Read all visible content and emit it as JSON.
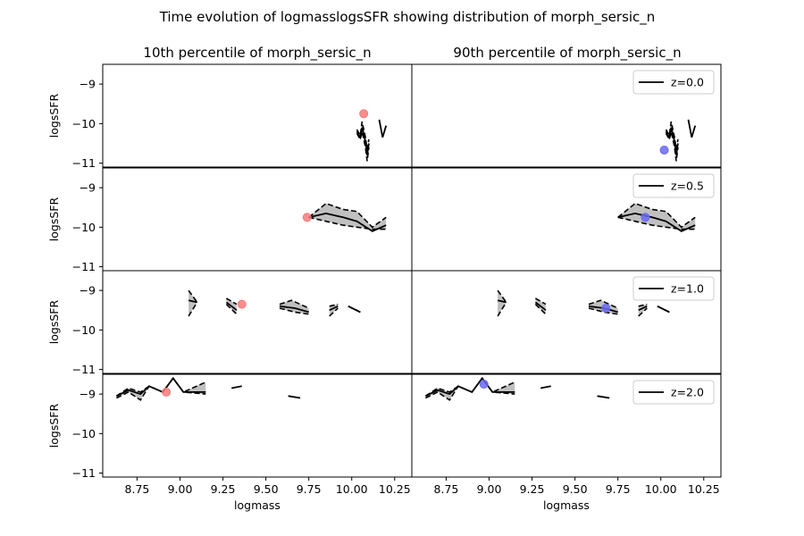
{
  "figure": {
    "suptitle": "Time evolution of logmasslogsSFR showing distribution of morph_sersic_n",
    "col_titles": [
      "10th percentile of morph_sersic_n",
      "90th percentile of morph_sersic_n"
    ],
    "xlabel": "logmass",
    "ylabel": "logsSFR",
    "legend_labels": [
      "z=0.0",
      "z=0.5",
      "z=1.0",
      "z=2.0"
    ]
  },
  "chart_data": {
    "type": "line",
    "layout": "4 rows x 2 columns, shared axes",
    "xlim": [
      8.55,
      10.35
    ],
    "ylim": [
      -11.1,
      -8.5
    ],
    "xticks": [
      8.75,
      9.0,
      9.25,
      9.5,
      9.75,
      10.0,
      10.25
    ],
    "xtick_labels": [
      "8.75",
      "9.00",
      "9.25",
      "9.50",
      "9.75",
      "10.00",
      "10.25"
    ],
    "yticks": [
      -9,
      -10,
      -11
    ],
    "ytick_labels": [
      "−9",
      "−10",
      "−11"
    ],
    "legend_position": "upper right",
    "colors": {
      "median": "#000000",
      "band": "#c0c0c0",
      "left_marker": "#f87a7a",
      "right_marker": "#6a6af2"
    },
    "panels": [
      {
        "row": 0,
        "col": 0,
        "z": "0.0",
        "median": [
          [
            10.03,
            -10.2
          ],
          [
            10.05,
            -10.35
          ],
          [
            10.06,
            -10.1
          ],
          [
            10.08,
            -10.45
          ],
          [
            10.09,
            -10.8
          ],
          [
            10.1,
            -10.5
          ]
        ],
        "upper": [
          [
            10.03,
            -10.15
          ],
          [
            10.05,
            -10.3
          ],
          [
            10.06,
            -9.95
          ],
          [
            10.08,
            -10.35
          ],
          [
            10.09,
            -10.65
          ],
          [
            10.1,
            -10.4
          ]
        ],
        "lower": [
          [
            10.03,
            -10.25
          ],
          [
            10.05,
            -10.4
          ],
          [
            10.06,
            -10.2
          ],
          [
            10.08,
            -10.6
          ],
          [
            10.09,
            -10.95
          ],
          [
            10.1,
            -10.6
          ]
        ],
        "extra_segments": [
          [
            [
              10.16,
              -9.9
            ],
            [
              10.18,
              -10.35
            ],
            [
              10.2,
              -10.05
            ]
          ]
        ],
        "marker": [
          10.07,
          -9.75
        ]
      },
      {
        "row": 0,
        "col": 1,
        "z": "0.0",
        "median": [
          [
            10.03,
            -10.2
          ],
          [
            10.05,
            -10.35
          ],
          [
            10.06,
            -10.1
          ],
          [
            10.08,
            -10.45
          ],
          [
            10.09,
            -10.8
          ],
          [
            10.1,
            -10.5
          ]
        ],
        "upper": [
          [
            10.03,
            -10.15
          ],
          [
            10.05,
            -10.3
          ],
          [
            10.06,
            -9.95
          ],
          [
            10.08,
            -10.35
          ],
          [
            10.09,
            -10.65
          ],
          [
            10.1,
            -10.4
          ]
        ],
        "lower": [
          [
            10.03,
            -10.25
          ],
          [
            10.05,
            -10.4
          ],
          [
            10.06,
            -10.2
          ],
          [
            10.08,
            -10.6
          ],
          [
            10.09,
            -10.95
          ],
          [
            10.1,
            -10.6
          ]
        ],
        "extra_segments": [
          [
            [
              10.16,
              -9.9
            ],
            [
              10.18,
              -10.35
            ],
            [
              10.2,
              -10.05
            ]
          ]
        ],
        "marker": [
          10.02,
          -10.67
        ]
      },
      {
        "row": 1,
        "col": 0,
        "z": "0.5",
        "median": [
          [
            9.75,
            -9.75
          ],
          [
            9.85,
            -9.65
          ],
          [
            9.95,
            -9.75
          ],
          [
            10.03,
            -9.85
          ],
          [
            10.12,
            -10.1
          ],
          [
            10.2,
            -9.95
          ]
        ],
        "upper": [
          [
            9.75,
            -9.75
          ],
          [
            9.85,
            -9.4
          ],
          [
            9.95,
            -9.55
          ],
          [
            10.03,
            -9.6
          ],
          [
            10.12,
            -10.0
          ],
          [
            10.2,
            -9.75
          ]
        ],
        "lower": [
          [
            9.75,
            -9.75
          ],
          [
            9.85,
            -9.85
          ],
          [
            9.95,
            -9.95
          ],
          [
            10.03,
            -10.0
          ],
          [
            10.12,
            -10.05
          ],
          [
            10.2,
            -10.05
          ]
        ],
        "extra_segments": [],
        "marker": [
          9.74,
          -9.75
        ]
      },
      {
        "row": 1,
        "col": 1,
        "z": "0.5",
        "median": [
          [
            9.75,
            -9.75
          ],
          [
            9.85,
            -9.65
          ],
          [
            9.95,
            -9.75
          ],
          [
            10.03,
            -9.85
          ],
          [
            10.12,
            -10.1
          ],
          [
            10.2,
            -9.95
          ]
        ],
        "upper": [
          [
            9.75,
            -9.75
          ],
          [
            9.85,
            -9.4
          ],
          [
            9.95,
            -9.55
          ],
          [
            10.03,
            -9.6
          ],
          [
            10.12,
            -10.0
          ],
          [
            10.2,
            -9.75
          ]
        ],
        "lower": [
          [
            9.75,
            -9.75
          ],
          [
            9.85,
            -9.85
          ],
          [
            9.95,
            -9.95
          ],
          [
            10.03,
            -10.0
          ],
          [
            10.12,
            -10.05
          ],
          [
            10.2,
            -10.05
          ]
        ],
        "extra_segments": [],
        "marker": [
          9.91,
          -9.75
        ]
      },
      {
        "row": 2,
        "col": 0,
        "z": "1.0",
        "median_segments": [
          [
            [
              9.05,
              -9.25
            ],
            [
              9.1,
              -9.3
            ]
          ],
          [
            [
              9.27,
              -9.3
            ],
            [
              9.33,
              -9.5
            ]
          ],
          [
            [
              9.58,
              -9.4
            ],
            [
              9.67,
              -9.45
            ],
            [
              9.75,
              -9.55
            ]
          ],
          [
            [
              9.87,
              -9.5
            ],
            [
              9.92,
              -9.4
            ]
          ],
          [
            [
              9.98,
              -9.4
            ],
            [
              10.05,
              -9.55
            ]
          ]
        ],
        "upper_segments": [
          [
            [
              9.05,
              -9.0
            ],
            [
              9.1,
              -9.3
            ]
          ],
          [
            [
              9.27,
              -9.2
            ],
            [
              9.33,
              -9.35
            ]
          ],
          [
            [
              9.58,
              -9.35
            ],
            [
              9.65,
              -9.25
            ],
            [
              9.75,
              -9.45
            ]
          ],
          [
            [
              9.87,
              -9.4
            ],
            [
              9.92,
              -9.35
            ]
          ],
          [
            [
              9.98,
              -9.4
            ],
            [
              10.05,
              -9.55
            ]
          ]
        ],
        "lower_segments": [
          [
            [
              9.05,
              -9.65
            ],
            [
              9.1,
              -9.3
            ]
          ],
          [
            [
              9.27,
              -9.35
            ],
            [
              9.33,
              -9.6
            ]
          ],
          [
            [
              9.58,
              -9.45
            ],
            [
              9.67,
              -9.55
            ],
            [
              9.75,
              -9.6
            ]
          ],
          [
            [
              9.87,
              -9.65
            ],
            [
              9.92,
              -9.45
            ]
          ],
          [
            [
              9.98,
              -9.4
            ],
            [
              10.05,
              -9.55
            ]
          ]
        ],
        "marker": [
          9.36,
          -9.35
        ]
      },
      {
        "row": 2,
        "col": 1,
        "z": "1.0",
        "median_segments": [
          [
            [
              9.05,
              -9.25
            ],
            [
              9.1,
              -9.3
            ]
          ],
          [
            [
              9.27,
              -9.3
            ],
            [
              9.33,
              -9.5
            ]
          ],
          [
            [
              9.58,
              -9.4
            ],
            [
              9.67,
              -9.45
            ],
            [
              9.75,
              -9.55
            ]
          ],
          [
            [
              9.87,
              -9.5
            ],
            [
              9.92,
              -9.4
            ]
          ],
          [
            [
              9.98,
              -9.4
            ],
            [
              10.05,
              -9.55
            ]
          ]
        ],
        "upper_segments": [
          [
            [
              9.05,
              -9.0
            ],
            [
              9.1,
              -9.3
            ]
          ],
          [
            [
              9.27,
              -9.2
            ],
            [
              9.33,
              -9.35
            ]
          ],
          [
            [
              9.58,
              -9.35
            ],
            [
              9.65,
              -9.25
            ],
            [
              9.75,
              -9.45
            ]
          ],
          [
            [
              9.87,
              -9.4
            ],
            [
              9.92,
              -9.35
            ]
          ],
          [
            [
              9.98,
              -9.4
            ],
            [
              10.05,
              -9.55
            ]
          ]
        ],
        "lower_segments": [
          [
            [
              9.05,
              -9.65
            ],
            [
              9.1,
              -9.3
            ]
          ],
          [
            [
              9.27,
              -9.35
            ],
            [
              9.33,
              -9.6
            ]
          ],
          [
            [
              9.58,
              -9.45
            ],
            [
              9.67,
              -9.55
            ],
            [
              9.75,
              -9.6
            ]
          ],
          [
            [
              9.87,
              -9.65
            ],
            [
              9.92,
              -9.45
            ]
          ],
          [
            [
              9.98,
              -9.4
            ],
            [
              10.05,
              -9.55
            ]
          ]
        ],
        "marker": [
          9.68,
          -9.45
        ]
      },
      {
        "row": 3,
        "col": 0,
        "z": "2.0",
        "median": [
          [
            8.63,
            -9.05
          ],
          [
            8.7,
            -8.9
          ],
          [
            8.77,
            -9.0
          ],
          [
            8.82,
            -8.8
          ],
          [
            8.9,
            -8.95
          ],
          [
            8.96,
            -8.6
          ],
          [
            9.02,
            -8.95
          ],
          [
            9.15,
            -8.95
          ]
        ],
        "upper": [
          [
            8.63,
            -9.05
          ],
          [
            8.7,
            -8.85
          ],
          [
            8.77,
            -8.95
          ],
          [
            8.82,
            -8.8
          ],
          [
            8.9,
            -8.95
          ],
          [
            8.96,
            -8.6
          ],
          [
            9.02,
            -8.95
          ],
          [
            9.15,
            -8.7
          ]
        ],
        "lower": [
          [
            8.63,
            -9.1
          ],
          [
            8.7,
            -8.95
          ],
          [
            8.77,
            -9.15
          ],
          [
            8.82,
            -8.8
          ],
          [
            8.9,
            -8.95
          ],
          [
            8.96,
            -8.6
          ],
          [
            9.02,
            -8.95
          ],
          [
            9.15,
            -9.0
          ]
        ],
        "extra_segments": [
          [
            [
              9.3,
              -8.85
            ],
            [
              9.36,
              -8.8
            ]
          ],
          [
            [
              9.63,
              -9.05
            ],
            [
              9.7,
              -9.1
            ]
          ]
        ],
        "marker": [
          8.92,
          -8.95
        ]
      },
      {
        "row": 3,
        "col": 1,
        "z": "2.0",
        "median": [
          [
            8.63,
            -9.05
          ],
          [
            8.7,
            -8.9
          ],
          [
            8.77,
            -9.0
          ],
          [
            8.82,
            -8.8
          ],
          [
            8.9,
            -8.95
          ],
          [
            8.96,
            -8.6
          ],
          [
            9.02,
            -8.95
          ],
          [
            9.15,
            -8.95
          ]
        ],
        "upper": [
          [
            8.63,
            -9.05
          ],
          [
            8.7,
            -8.85
          ],
          [
            8.77,
            -8.95
          ],
          [
            8.82,
            -8.8
          ],
          [
            8.9,
            -8.95
          ],
          [
            8.96,
            -8.6
          ],
          [
            9.02,
            -8.95
          ],
          [
            9.15,
            -8.7
          ]
        ],
        "lower": [
          [
            8.63,
            -9.1
          ],
          [
            8.7,
            -8.95
          ],
          [
            8.77,
            -9.15
          ],
          [
            8.82,
            -8.8
          ],
          [
            8.9,
            -8.95
          ],
          [
            8.96,
            -8.6
          ],
          [
            9.02,
            -8.95
          ],
          [
            9.15,
            -9.0
          ]
        ],
        "extra_segments": [
          [
            [
              9.3,
              -8.85
            ],
            [
              9.36,
              -8.8
            ]
          ],
          [
            [
              9.63,
              -9.05
            ],
            [
              9.7,
              -9.1
            ]
          ]
        ],
        "marker": [
          8.97,
          -8.75
        ]
      }
    ]
  }
}
